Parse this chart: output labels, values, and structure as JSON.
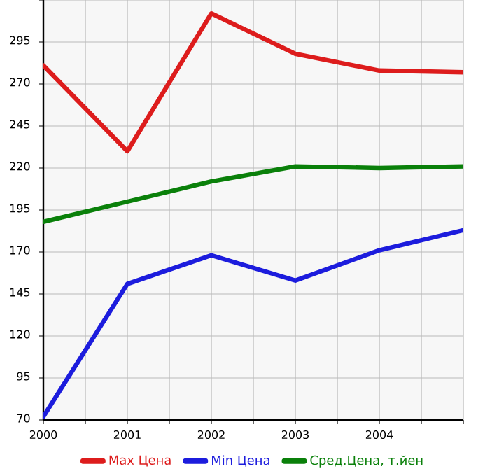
{
  "chart_data": {
    "type": "line",
    "x": [
      2000,
      2001,
      2002,
      2003,
      2004,
      2005
    ],
    "series": [
      {
        "name": "Max Цена",
        "color": "#dd1c1c",
        "values": [
          281,
          230,
          312,
          288,
          278,
          277
        ]
      },
      {
        "name": "Min Цена",
        "color": "#1c1cdd",
        "values": [
          72,
          151,
          168,
          153,
          171,
          183
        ]
      },
      {
        "name": "Сред.Цена, т.йен",
        "color": "#0a800a",
        "values": [
          188,
          200,
          212,
          221,
          220,
          221
        ]
      }
    ],
    "xlim": [
      2000,
      2005
    ],
    "xticks": [
      2000,
      {
        "value": 2000.5,
        "label": null
      },
      2001,
      {
        "value": 2001.5,
        "label": null
      },
      2002,
      {
        "value": 2002.5,
        "label": null
      },
      2003,
      {
        "value": 2003.5,
        "label": null
      },
      2004,
      {
        "value": 2004.5,
        "label": null
      },
      {
        "value": 2005,
        "label": null
      }
    ],
    "ylim": [
      70,
      320
    ],
    "yticks": [
      70,
      95,
      120,
      145,
      170,
      195,
      220,
      245,
      270,
      295,
      {
        "value": 320,
        "label": null
      }
    ],
    "grid": true,
    "legend": "bottom",
    "marker": "none",
    "line_style": "solid"
  }
}
